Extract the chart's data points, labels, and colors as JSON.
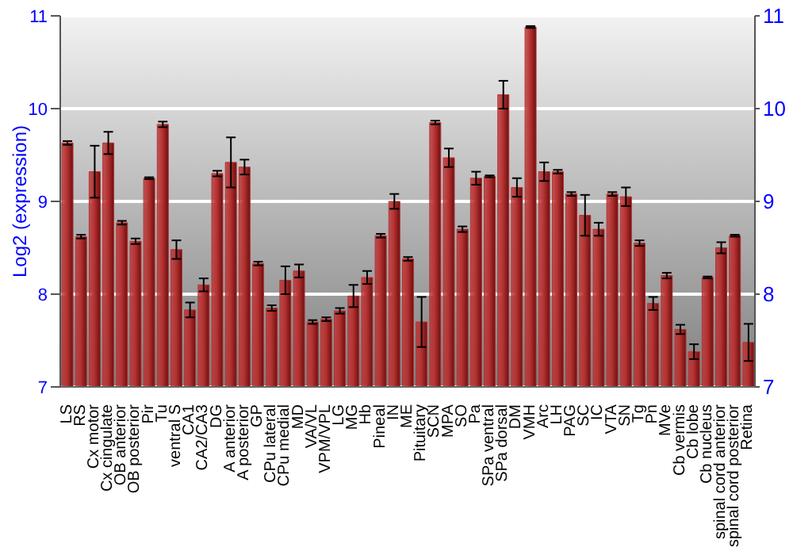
{
  "chart_data": {
    "type": "bar",
    "ylabel": "Log2 (expression)",
    "categories": [
      "LS",
      "RS",
      "Cx motor",
      "Cx cingulate",
      "OB anterior",
      "OB posterior",
      "Pir",
      "Tu",
      "ventral S",
      "CA1",
      "CA2/CA3",
      "DG",
      "A anterior",
      "A posterior",
      "GP",
      "CPu lateral",
      "CPu medial",
      "MD",
      "VA/VL",
      "VPM/VPL",
      "LG",
      "MG",
      "Hb",
      "Pineal",
      "IN",
      "ME",
      "Pituitary",
      "SCN",
      "MPA",
      "SO",
      "Pa",
      "SPa ventral",
      "SPa dorsal",
      "DM",
      "VMH",
      "Arc",
      "LH",
      "PAG",
      "SC",
      "IC",
      "VTA",
      "SN",
      "Tg",
      "Pn",
      "MVe",
      "Cb vermis",
      "Cb lobe",
      "Cb nucleus",
      "spinal cord anterior",
      "spinal cord posterior",
      "Retina"
    ],
    "values": [
      9.63,
      8.62,
      9.32,
      9.63,
      8.77,
      8.57,
      9.25,
      9.83,
      8.48,
      7.83,
      8.1,
      9.3,
      9.42,
      9.37,
      8.33,
      7.85,
      8.15,
      8.25,
      7.7,
      7.73,
      7.82,
      7.98,
      8.18,
      8.63,
      9.0,
      8.38,
      7.7,
      9.85,
      9.47,
      8.7,
      9.25,
      9.27,
      10.15,
      9.15,
      10.88,
      9.32,
      9.32,
      9.08,
      8.85,
      8.7,
      9.08,
      9.05,
      8.55,
      7.9,
      8.2,
      7.62,
      7.38,
      8.18,
      8.5,
      8.63,
      7.48
    ],
    "errors": [
      0.02,
      0.02,
      0.28,
      0.12,
      0.02,
      0.03,
      0.01,
      0.03,
      0.1,
      0.08,
      0.07,
      0.03,
      0.27,
      0.08,
      0.02,
      0.03,
      0.15,
      0.07,
      0.02,
      0.02,
      0.03,
      0.12,
      0.07,
      0.02,
      0.08,
      0.02,
      0.27,
      0.02,
      0.1,
      0.03,
      0.07,
      0.01,
      0.15,
      0.1,
      0.01,
      0.1,
      0.02,
      0.02,
      0.22,
      0.07,
      0.02,
      0.1,
      0.03,
      0.07,
      0.03,
      0.05,
      0.08,
      0.01,
      0.06,
      0.01,
      0.2
    ],
    "color": "#b83232",
    "ylim": [
      7,
      11
    ],
    "yticks": [
      7,
      8,
      9,
      10,
      11
    ],
    "y2lim": [
      7,
      11
    ],
    "y2ticks": [
      7,
      8,
      9,
      10,
      11
    ],
    "grid": "y"
  }
}
